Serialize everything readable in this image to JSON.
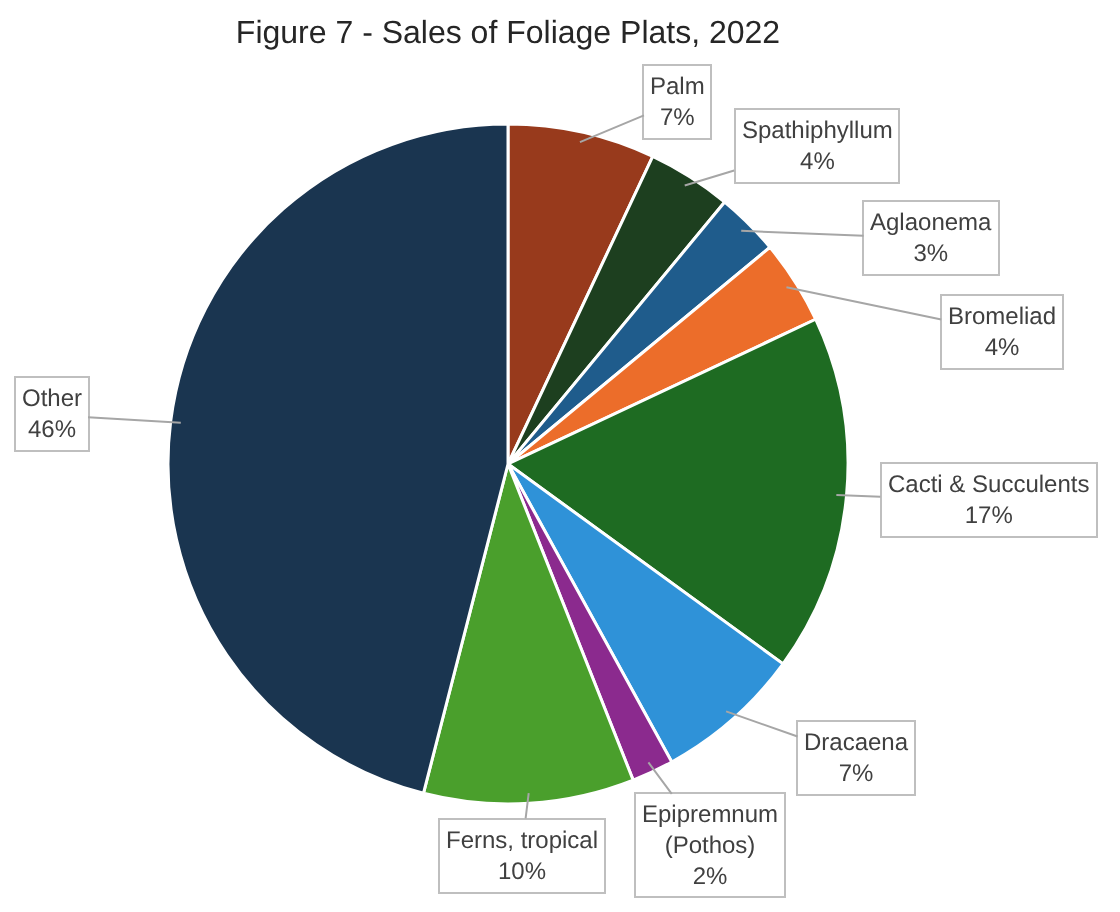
{
  "chart_data": {
    "type": "pie",
    "title": "Figure 7 - Sales of Foliage Plats, 2022",
    "categories": [
      "Palm",
      "Spathiphyllum",
      "Aglaonema",
      "Bromeliad",
      "Cacti & Succulents",
      "Dracaena",
      "Epipremnum (Pothos)",
      "Ferns, tropical",
      "Other"
    ],
    "values": [
      7,
      4,
      3,
      4,
      17,
      7,
      2,
      10,
      46
    ],
    "value_labels": [
      "7%",
      "4%",
      "3%",
      "4%",
      "17%",
      "7%",
      "2%",
      "10%",
      "46%"
    ],
    "colors": [
      "#983a1c",
      "#1d3f1f",
      "#1f5c8c",
      "#ec6d2a",
      "#1e6b22",
      "#2f92d8",
      "#8b2a8e",
      "#4a9f2c",
      "#1a3550"
    ]
  }
}
